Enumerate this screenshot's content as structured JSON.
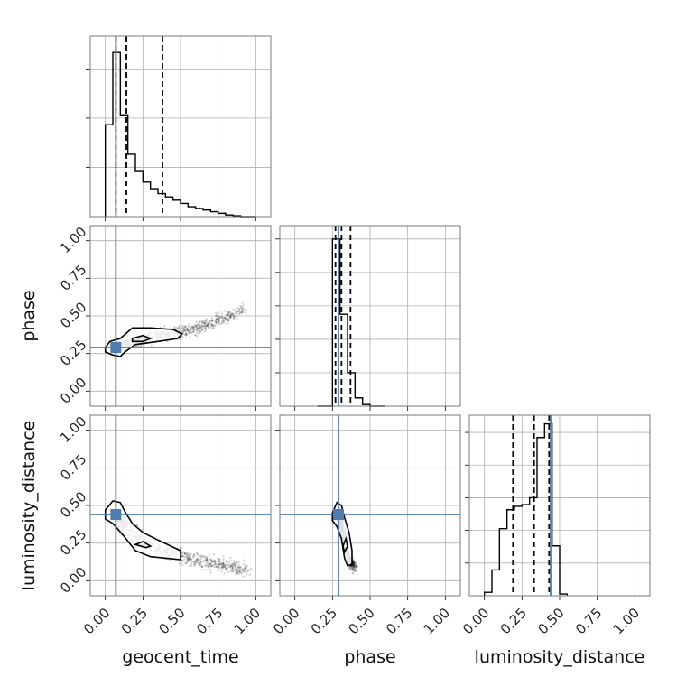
{
  "colors": {
    "truth": "#4f7cae",
    "samples": "#000000",
    "grid": "#b0b0b0"
  },
  "chart_data": {
    "type": "corner",
    "parameters": [
      "geocent_time",
      "phase",
      "luminosity_distance"
    ],
    "axis_labels": {
      "bottom": [
        "geocent_time",
        "phase",
        "luminosity_distance"
      ],
      "left": [
        "phase",
        "luminosity_distance"
      ]
    },
    "range": [
      -0.1,
      1.1
    ],
    "tick_values": [
      0.0,
      0.25,
      0.5,
      0.75,
      1.0
    ],
    "tick_labels": [
      "0.00",
      "0.25",
      "0.50",
      "0.75",
      "1.00"
    ],
    "grid": true,
    "truths": {
      "geocent_time": 0.07,
      "phase": 0.29,
      "luminosity_distance": 0.44
    },
    "quantiles": {
      "geocent_time": [
        0.07,
        0.14,
        0.38
      ],
      "phase": [
        0.27,
        0.31,
        0.37
      ],
      "luminosity_distance": [
        0.19,
        0.33,
        0.43
      ]
    },
    "histograms": {
      "geocent_time": {
        "bin_edges": [
          0.0,
          0.05,
          0.1,
          0.15,
          0.2,
          0.25,
          0.3,
          0.35,
          0.4,
          0.45,
          0.5,
          0.55,
          0.6,
          0.65,
          0.7,
          0.75,
          0.8,
          0.85,
          0.9,
          0.95,
          1.0
        ],
        "counts": [
          0.56,
          1.0,
          0.62,
          0.38,
          0.28,
          0.21,
          0.17,
          0.14,
          0.12,
          0.1,
          0.08,
          0.06,
          0.05,
          0.04,
          0.03,
          0.02,
          0.01,
          0.005,
          0.0,
          0.0
        ],
        "ymax": 1.1,
        "yticks": [
          0.3,
          0.6,
          0.9
        ]
      },
      "phase": {
        "bin_edges": [
          0.15,
          0.2,
          0.25,
          0.3,
          0.35,
          0.4,
          0.45,
          0.5,
          0.55,
          0.6
        ],
        "counts": [
          0.0,
          0.0,
          1.0,
          0.55,
          0.2,
          0.05,
          0.01,
          0.0,
          0.0
        ],
        "ymax": 1.08,
        "yticks": [
          0.2,
          0.4,
          0.6,
          0.8,
          1.0
        ]
      },
      "luminosity_distance": {
        "bin_edges": [
          0.0,
          0.05,
          0.1,
          0.15,
          0.2,
          0.25,
          0.3,
          0.35,
          0.4,
          0.45,
          0.5,
          0.55
        ],
        "counts": [
          0.02,
          0.15,
          0.39,
          0.5,
          0.52,
          0.53,
          0.57,
          0.92,
          1.0,
          0.29,
          0.01
        ],
        "ymax": 1.05,
        "yticks": [
          0.19,
          0.38,
          0.57,
          0.76,
          0.95
        ]
      }
    },
    "samples_2d": {
      "geocent_time_vs_phase": {
        "curve": [
          [
            0.07,
            0.28
          ],
          [
            0.2,
            0.34
          ],
          [
            0.35,
            0.37
          ],
          [
            0.5,
            0.39
          ],
          [
            0.65,
            0.43
          ],
          [
            0.8,
            0.49
          ],
          [
            0.92,
            0.55
          ]
        ],
        "spread": 0.04,
        "contours": [
          [
            [
              0.0,
              0.26
            ],
            [
              0.05,
              0.24
            ],
            [
              0.1,
              0.23
            ],
            [
              0.13,
              0.26
            ],
            [
              0.2,
              0.31
            ],
            [
              0.35,
              0.33
            ],
            [
              0.48,
              0.35
            ],
            [
              0.51,
              0.38
            ],
            [
              0.45,
              0.41
            ],
            [
              0.3,
              0.42
            ],
            [
              0.18,
              0.42
            ],
            [
              0.1,
              0.35
            ],
            [
              0.03,
              0.33
            ],
            [
              0.0,
              0.29
            ],
            [
              0.0,
              0.26
            ]
          ],
          [
            [
              0.18,
              0.33
            ],
            [
              0.25,
              0.33
            ],
            [
              0.3,
              0.35
            ],
            [
              0.25,
              0.37
            ],
            [
              0.18,
              0.35
            ],
            [
              0.18,
              0.33
            ]
          ]
        ]
      },
      "geocent_time_vs_luminosity_distance": {
        "curve": [
          [
            0.07,
            0.44
          ],
          [
            0.15,
            0.34
          ],
          [
            0.25,
            0.26
          ],
          [
            0.4,
            0.19
          ],
          [
            0.55,
            0.15
          ],
          [
            0.7,
            0.12
          ],
          [
            0.85,
            0.09
          ],
          [
            0.95,
            0.07
          ]
        ],
        "spread": 0.05,
        "contours": [
          [
            [
              0.0,
              0.47
            ],
            [
              0.05,
              0.53
            ],
            [
              0.1,
              0.52
            ],
            [
              0.13,
              0.46
            ],
            [
              0.18,
              0.38
            ],
            [
              0.25,
              0.32
            ],
            [
              0.35,
              0.27
            ],
            [
              0.5,
              0.2
            ],
            [
              0.5,
              0.14
            ],
            [
              0.3,
              0.16
            ],
            [
              0.2,
              0.2
            ],
            [
              0.12,
              0.3
            ],
            [
              0.05,
              0.38
            ],
            [
              0.0,
              0.41
            ],
            [
              0.0,
              0.47
            ]
          ],
          [
            [
              0.2,
              0.24
            ],
            [
              0.27,
              0.22
            ],
            [
              0.3,
              0.23
            ],
            [
              0.25,
              0.26
            ],
            [
              0.2,
              0.24
            ]
          ]
        ]
      },
      "phase_vs_luminosity_distance": {
        "curve": [
          [
            0.29,
            0.44
          ],
          [
            0.31,
            0.36
          ],
          [
            0.33,
            0.28
          ],
          [
            0.35,
            0.2
          ],
          [
            0.37,
            0.13
          ],
          [
            0.4,
            0.08
          ]
        ],
        "spread": 0.035,
        "contours": [
          [
            [
              0.25,
              0.45
            ],
            [
              0.28,
              0.52
            ],
            [
              0.31,
              0.5
            ],
            [
              0.33,
              0.42
            ],
            [
              0.36,
              0.32
            ],
            [
              0.38,
              0.2
            ],
            [
              0.38,
              0.11
            ],
            [
              0.35,
              0.1
            ],
            [
              0.33,
              0.15
            ],
            [
              0.31,
              0.28
            ],
            [
              0.28,
              0.36
            ],
            [
              0.25,
              0.4
            ],
            [
              0.25,
              0.45
            ]
          ],
          [
            [
              0.33,
              0.19
            ],
            [
              0.35,
              0.23
            ],
            [
              0.34,
              0.28
            ],
            [
              0.32,
              0.23
            ],
            [
              0.33,
              0.19
            ]
          ]
        ]
      }
    }
  }
}
